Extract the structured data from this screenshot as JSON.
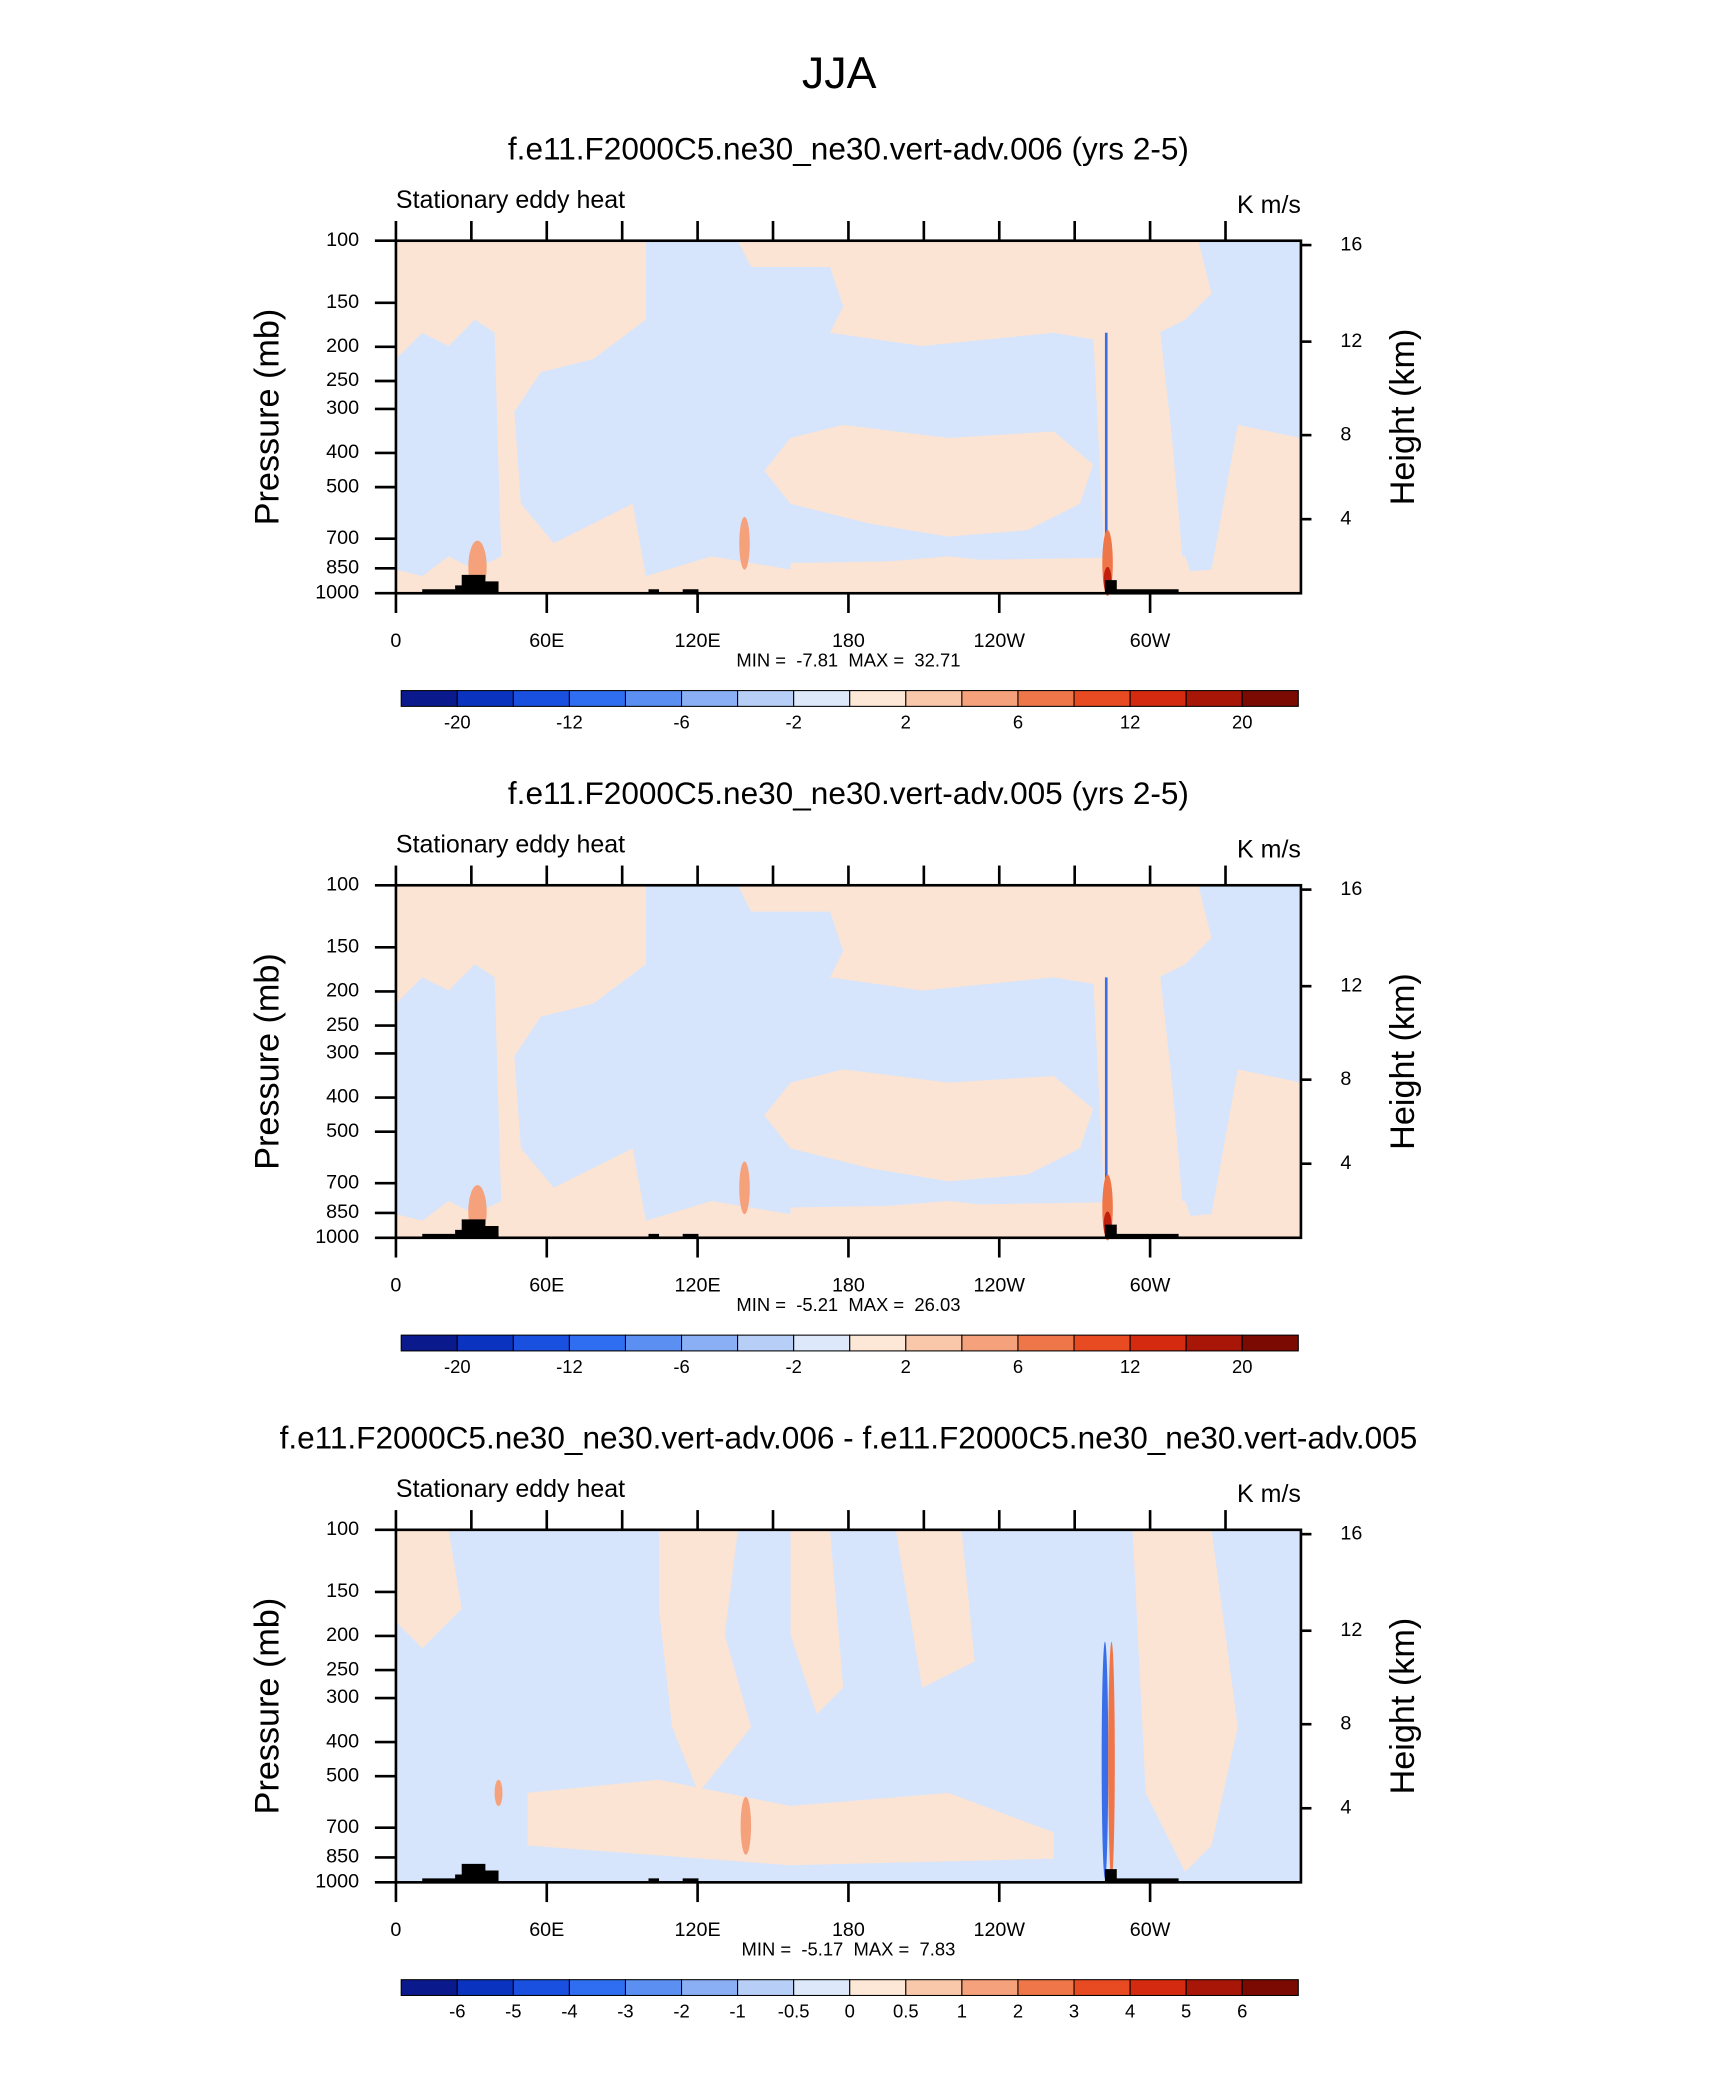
{
  "title": "JJA",
  "chart_data": [
    {
      "type": "contour",
      "title": "f.e11.F2000C5.ne30_ne30.vert-adv.006 (yrs 2-5)",
      "left_string": "Stationary eddy heat",
      "right_string": "K m/s",
      "ylabel": "Pressure (mb)",
      "y2label": "Height (km)",
      "log": true,
      "ylim": [
        1000,
        100
      ],
      "yticks": [
        100,
        150,
        200,
        250,
        300,
        400,
        500,
        700,
        850,
        1000
      ],
      "y2lim": [
        0.111,
        16.18
      ],
      "y2ticks": [
        4,
        8,
        12,
        16
      ],
      "xlim": [
        0,
        360
      ],
      "xticks": [
        0,
        {
          "value": 60,
          "label": "60E"
        },
        {
          "value": 120,
          "label": "120E"
        },
        180,
        {
          "value": 240,
          "label": "120W"
        },
        {
          "value": 300,
          "label": "60W"
        }
      ],
      "xminor": [
        30,
        90,
        150,
        210,
        270,
        330
      ],
      "stats": "MIN =  -7.81  MAX =  32.71",
      "colorbar": {
        "colors": [
          "#0a1a8c",
          "#0a33bf",
          "#1a50e0",
          "#2f6ef0",
          "#5b8ff2",
          "#8aaff4",
          "#b7cff7",
          "#dde9fb",
          "#fde7d6",
          "#f9c8aa",
          "#f5a27c",
          "#ef7649",
          "#e84a22",
          "#d42a10",
          "#a81608",
          "#7a0a02"
        ],
        "levels": [
          -20,
          null,
          -12,
          null,
          -6,
          null,
          -2,
          null,
          2,
          null,
          6,
          null,
          12,
          null,
          20
        ]
      }
    },
    {
      "type": "contour",
      "title": "f.e11.F2000C5.ne30_ne30.vert-adv.005 (yrs 2-5)",
      "left_string": "Stationary eddy heat",
      "right_string": "K m/s",
      "ylabel": "Pressure (mb)",
      "y2label": "Height (km)",
      "log": true,
      "ylim": [
        1000,
        100
      ],
      "yticks": [
        100,
        150,
        200,
        250,
        300,
        400,
        500,
        700,
        850,
        1000
      ],
      "y2lim": [
        0.111,
        16.18
      ],
      "y2ticks": [
        4,
        8,
        12,
        16
      ],
      "xlim": [
        0,
        360
      ],
      "xticks": [
        0,
        {
          "value": 60,
          "label": "60E"
        },
        {
          "value": 120,
          "label": "120E"
        },
        180,
        {
          "value": 240,
          "label": "120W"
        },
        {
          "value": 300,
          "label": "60W"
        }
      ],
      "xminor": [
        30,
        90,
        150,
        210,
        270,
        330
      ],
      "stats": "MIN =  -5.21  MAX =  26.03",
      "colorbar": {
        "colors": [
          "#0a1a8c",
          "#0a33bf",
          "#1a50e0",
          "#2f6ef0",
          "#5b8ff2",
          "#8aaff4",
          "#b7cff7",
          "#dde9fb",
          "#fde7d6",
          "#f9c8aa",
          "#f5a27c",
          "#ef7649",
          "#e84a22",
          "#d42a10",
          "#a81608",
          "#7a0a02"
        ],
        "levels": [
          -20,
          null,
          -12,
          null,
          -6,
          null,
          -2,
          null,
          2,
          null,
          6,
          null,
          12,
          null,
          20
        ]
      }
    },
    {
      "type": "contour",
      "title": "f.e11.F2000C5.ne30_ne30.vert-adv.006 - f.e11.F2000C5.ne30_ne30.vert-adv.005",
      "left_string": "Stationary eddy heat",
      "right_string": "K m/s",
      "ylabel": "Pressure (mb)",
      "y2label": "Height (km)",
      "log": true,
      "ylim": [
        1000,
        100
      ],
      "yticks": [
        100,
        150,
        200,
        250,
        300,
        400,
        500,
        700,
        850,
        1000
      ],
      "y2lim": [
        0.111,
        16.18
      ],
      "y2ticks": [
        4,
        8,
        12,
        16
      ],
      "xlim": [
        0,
        360
      ],
      "xticks": [
        0,
        {
          "value": 60,
          "label": "60E"
        },
        {
          "value": 120,
          "label": "120E"
        },
        180,
        {
          "value": 240,
          "label": "120W"
        },
        {
          "value": 300,
          "label": "60W"
        }
      ],
      "xminor": [
        30,
        90,
        150,
        210,
        270,
        330
      ],
      "stats": "MIN =  -5.17  MAX =  7.83",
      "colorbar": {
        "colors": [
          "#0a1a8c",
          "#0a33bf",
          "#1a50e0",
          "#2f6ef0",
          "#5b8ff2",
          "#8aaff4",
          "#b7cff7",
          "#dde9fb",
          "#fde7d6",
          "#f9c8aa",
          "#f5a27c",
          "#ef7649",
          "#e84a22",
          "#d42a10",
          "#a81608",
          "#7a0a02"
        ],
        "levels": [
          -6,
          -5,
          -4,
          -3,
          -2,
          -1,
          -0.5,
          0,
          0.5,
          1,
          2,
          3,
          4,
          5,
          6
        ]
      }
    }
  ]
}
